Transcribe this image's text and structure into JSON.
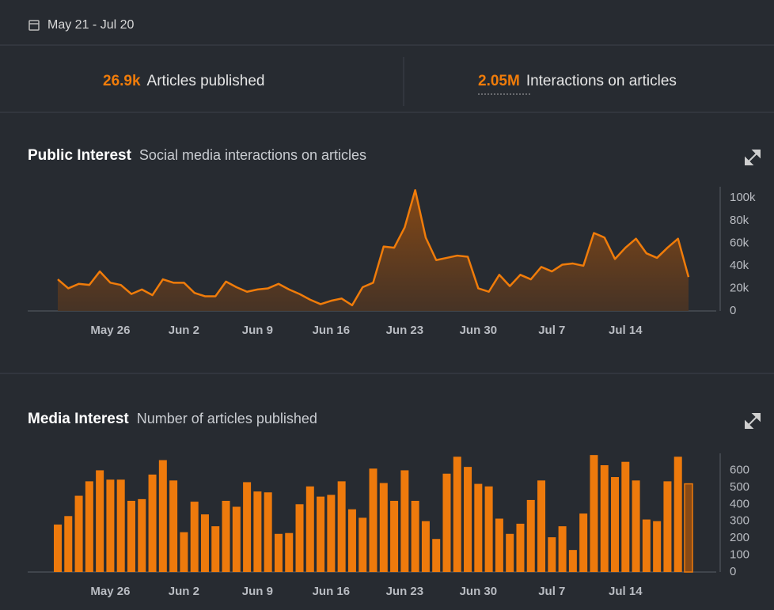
{
  "header": {
    "date_range": "May 21 - Jul 20"
  },
  "stats": [
    {
      "value": "26.9k",
      "label": "Articles published"
    },
    {
      "value": "2.05M",
      "label": "Interactions on articles"
    }
  ],
  "chart_data": [
    {
      "type": "area",
      "title": "Public Interest",
      "subtitle": "Social media interactions on articles",
      "color": "#f07c0a",
      "categories": [
        null,
        null,
        null,
        null,
        null,
        "May 26",
        null,
        null,
        null,
        null,
        null,
        null,
        "Jun 2",
        null,
        null,
        null,
        null,
        null,
        null,
        "Jun 9",
        null,
        null,
        null,
        null,
        null,
        null,
        "Jun 16",
        null,
        null,
        null,
        null,
        null,
        null,
        "Jun 23",
        null,
        null,
        null,
        null,
        null,
        null,
        "Jun 30",
        null,
        null,
        null,
        null,
        null,
        null,
        "Jul 7",
        null,
        null,
        null,
        null,
        null,
        null,
        "Jul 14",
        null,
        null,
        null,
        null,
        null,
        null
      ],
      "values": [
        28000,
        20000,
        24000,
        23000,
        35000,
        25000,
        23000,
        15000,
        19000,
        14000,
        28000,
        25000,
        25000,
        16000,
        13000,
        13000,
        26000,
        21000,
        17000,
        19000,
        20000,
        24000,
        19000,
        15000,
        10000,
        6000,
        9000,
        11000,
        5000,
        21000,
        25000,
        57000,
        56000,
        74000,
        107000,
        65000,
        45000,
        47000,
        49000,
        48000,
        20000,
        17000,
        32000,
        22000,
        32000,
        28000,
        39000,
        35000,
        41000,
        42000,
        40000,
        69000,
        65000,
        46000,
        56000,
        64000,
        51000,
        47000,
        56000,
        64000,
        30000
      ],
      "ylim": [
        0,
        110000
      ],
      "yticks": [
        0,
        {
          "value": 20000,
          "label": "20k"
        },
        {
          "value": 40000,
          "label": "40k"
        },
        {
          "value": 60000,
          "label": "60k"
        },
        {
          "value": 80000,
          "label": "80k"
        },
        {
          "value": 100000,
          "label": "100k"
        }
      ],
      "grid": false
    },
    {
      "type": "bar",
      "title": "Media Interest",
      "subtitle": "Number of articles published",
      "color": "#ee7a0c",
      "categories": [
        null,
        null,
        null,
        null,
        null,
        "May 26",
        null,
        null,
        null,
        null,
        null,
        null,
        "Jun 2",
        null,
        null,
        null,
        null,
        null,
        null,
        "Jun 9",
        null,
        null,
        null,
        null,
        null,
        null,
        "Jun 16",
        null,
        null,
        null,
        null,
        null,
        null,
        "Jun 23",
        null,
        null,
        null,
        null,
        null,
        null,
        "Jun 30",
        null,
        null,
        null,
        null,
        null,
        null,
        "Jul 7",
        null,
        null,
        null,
        null,
        null,
        null,
        "Jul 14",
        null,
        null,
        null,
        null,
        null,
        null
      ],
      "values": [
        280,
        330,
        450,
        535,
        600,
        545,
        545,
        420,
        430,
        575,
        660,
        540,
        235,
        415,
        340,
        270,
        420,
        385,
        530,
        475,
        470,
        225,
        230,
        400,
        505,
        445,
        455,
        535,
        370,
        320,
        610,
        525,
        420,
        600,
        420,
        300,
        195,
        580,
        680,
        620,
        520,
        505,
        315,
        225,
        285,
        425,
        540,
        205,
        270,
        130,
        345,
        690,
        630,
        560,
        650,
        540,
        310,
        300,
        535,
        680,
        520
      ],
      "ylim": [
        0,
        700
      ],
      "yticks": [
        0,
        100,
        200,
        300,
        400,
        500,
        600
      ],
      "grid": false
    }
  ]
}
